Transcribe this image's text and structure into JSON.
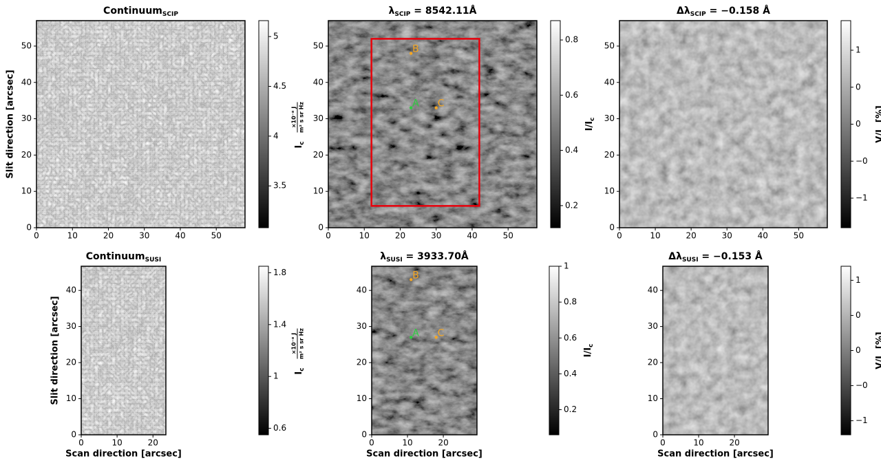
{
  "chart_data": [
    {
      "type": "image",
      "title": {
        "main": "Continuum",
        "sub": "SCIP"
      },
      "ylabel": "Slit direction [arcsec]",
      "xlim": [
        0,
        58
      ],
      "ylim": [
        0,
        57
      ],
      "xticks": [
        0,
        10,
        20,
        30,
        40,
        50
      ],
      "yticks": [
        0,
        10,
        20,
        30,
        40,
        50
      ],
      "clim": [
        3.08,
        5.16
      ],
      "cticks": [
        3.5,
        4.0,
        4.5,
        5.0
      ],
      "clabel": {
        "main": "I",
        "sub": "c",
        "unit_top": "×10⁻⁸ J",
        "unit_bottom": "m² s sr Hz"
      }
    },
    {
      "type": "image",
      "title": {
        "main": "λ",
        "sub": "SCIP",
        "rest": " = 8542.11Å"
      },
      "xlim": [
        0,
        58
      ],
      "ylim": [
        0,
        57
      ],
      "xticks": [
        0,
        10,
        20,
        30,
        40,
        50
      ],
      "yticks": [
        0,
        10,
        20,
        30,
        40,
        50
      ],
      "clim": [
        0.12,
        0.87
      ],
      "cticks": [
        0.2,
        0.4,
        0.6,
        0.8
      ],
      "clabel": {
        "main": "I/I",
        "sub": "c"
      },
      "box": {
        "x": [
          12,
          42
        ],
        "y": [
          6,
          52
        ],
        "color": "#e8000b"
      },
      "points": [
        {
          "label": "B",
          "x": 23,
          "y": 48,
          "color": "#f5a623"
        },
        {
          "label": "A",
          "x": 23,
          "y": 33,
          "color": "#2ecc40"
        },
        {
          "label": "C",
          "x": 30,
          "y": 33,
          "color": "#f5a623"
        }
      ]
    },
    {
      "type": "image",
      "title": {
        "main": "Δλ",
        "sub": "SCIP",
        "rest": " = −0.158 Å"
      },
      "xlim": [
        0,
        58
      ],
      "ylim": [
        0,
        57
      ],
      "xticks": [
        0,
        10,
        20,
        30,
        40,
        50
      ],
      "yticks": [
        0,
        10,
        20,
        30,
        40,
        50
      ],
      "clim": [
        -1.4,
        1.4
      ],
      "cticks": [
        {
          "value": -1,
          "label": "−1"
        },
        {
          "value": -0.5,
          "label": "−0"
        },
        0,
        {
          "value": 0.5,
          "label": "0"
        },
        1
      ],
      "clabel": {
        "main": "V/I",
        "sub": "c",
        "rest": " [%]"
      }
    },
    {
      "type": "image",
      "title": {
        "main": "Continuum",
        "sub": "SUSI"
      },
      "xlabel": "Scan direction [arcsec]",
      "ylabel": "Slit direction [arcsec]",
      "xlim": [
        0,
        23.6
      ],
      "ylim": [
        0,
        46.7
      ],
      "xticks": [
        0,
        10,
        20
      ],
      "yticks": [
        0,
        10,
        20,
        30,
        40
      ],
      "clim": [
        0.55,
        1.85
      ],
      "cticks": [
        0.6,
        1.0,
        1.4,
        1.8
      ],
      "clabel": {
        "main": "I",
        "sub": "c",
        "unit_top": "×10⁻⁸ J",
        "unit_bottom": "m² s sr Hz"
      }
    },
    {
      "type": "image",
      "title": {
        "main": "λ",
        "sub": "SUSI",
        "rest": " = 3933.70Å"
      },
      "xlabel": "Scan direction [arcsec]",
      "xlim": [
        0,
        29.4
      ],
      "ylim": [
        0,
        46.7
      ],
      "xticks": [
        0,
        10,
        20
      ],
      "yticks": [
        0,
        10,
        20,
        30,
        40
      ],
      "clim": [
        0.06,
        1.0
      ],
      "cticks": [
        0.2,
        0.4,
        0.6,
        0.8,
        1.0
      ],
      "clabel": {
        "main": "I/I",
        "sub": "c"
      },
      "points": [
        {
          "label": "B",
          "x": 11,
          "y": 43,
          "color": "#f5a623"
        },
        {
          "label": "A",
          "x": 11,
          "y": 27,
          "color": "#2ecc40"
        },
        {
          "label": "C",
          "x": 18,
          "y": 27,
          "color": "#f5a623"
        }
      ]
    },
    {
      "type": "image",
      "title": {
        "main": "Δλ",
        "sub": "SUSI",
        "rest": " = −0.153 Å"
      },
      "xlabel": "Scan direction [arcsec]",
      "xlim": [
        0,
        29.4
      ],
      "ylim": [
        0,
        46.7
      ],
      "xticks": [
        0,
        10,
        20
      ],
      "yticks": [
        0,
        10,
        20,
        30,
        40
      ],
      "clim": [
        -1.2,
        1.2
      ],
      "cticks": [
        {
          "value": -1,
          "label": "−1"
        },
        {
          "value": -0.5,
          "label": "−0"
        },
        0,
        {
          "value": 0.5,
          "label": "0"
        },
        1
      ],
      "clabel": {
        "main": "V/I",
        "sub": "c",
        "rest": " [%]"
      }
    }
  ]
}
